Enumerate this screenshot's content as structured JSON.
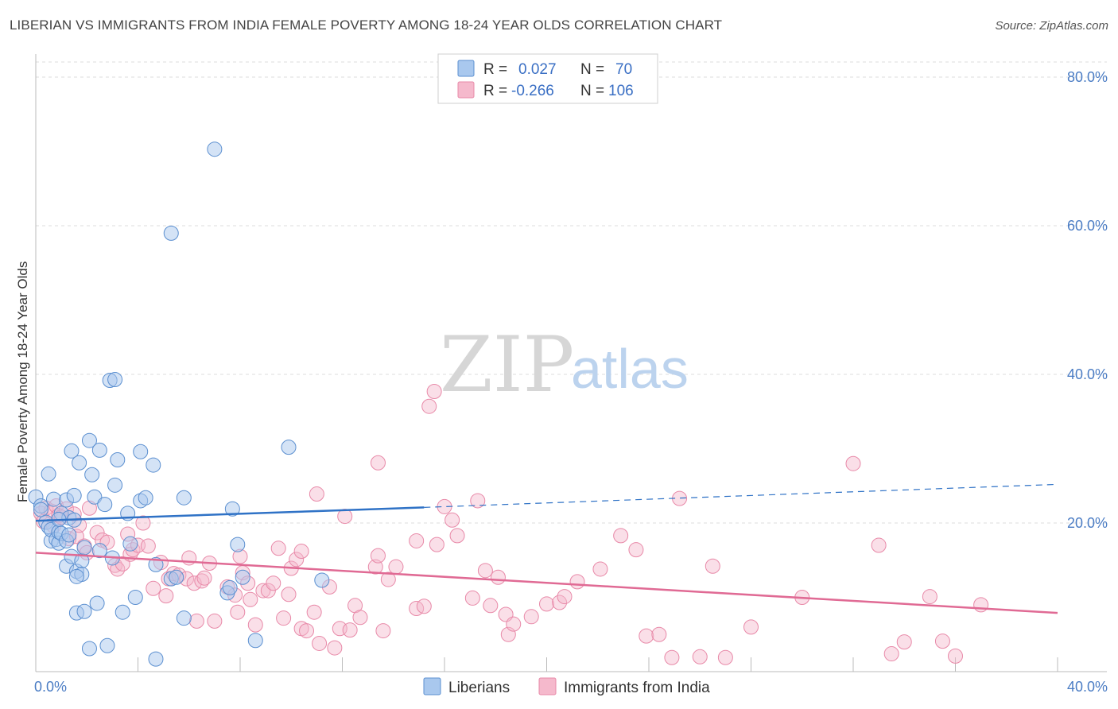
{
  "title": "LIBERIAN VS IMMIGRANTS FROM INDIA FEMALE POVERTY AMONG 18-24 YEAR OLDS CORRELATION CHART",
  "source": "Source: ZipAtlas.com",
  "watermark": {
    "zip": "ZIP",
    "atlas": "atlas"
  },
  "colors": {
    "blue_fill": "#a9c8ee",
    "blue_stroke": "#5b8fd0",
    "blue_line": "#2f72c6",
    "pink_fill": "#f5b9cc",
    "pink_stroke": "#e889a8",
    "pink_line": "#e06a94",
    "grid": "#dddddd",
    "tick_text": "#4a7cc4"
  },
  "legend": {
    "rows": [
      {
        "r_label": "R =",
        "r_value": "0.027",
        "n_label": "N =",
        "n_value": "70"
      },
      {
        "r_label": "R =",
        "r_value": "-0.266",
        "n_label": "N =",
        "n_value": "106"
      }
    ]
  },
  "chart_data": {
    "type": "scatter",
    "title": "LIBERIAN VS IMMIGRANTS FROM INDIA FEMALE POVERTY AMONG 18-24 YEAR OLDS CORRELATION CHART",
    "xlabel": "",
    "ylabel": "Female Poverty Among 18-24 Year Olds",
    "xlim": [
      0,
      40
    ],
    "ylim": [
      0,
      80
    ],
    "x_tick_labels": [
      "0.0%",
      "40.0%"
    ],
    "y_ticks": [
      20,
      40,
      60,
      80
    ],
    "y_tick_labels": [
      "20.0%",
      "40.0%",
      "60.0%",
      "80.0%"
    ],
    "grid": true,
    "series": [
      {
        "name": "Liberians",
        "color": "#a9c8ee",
        "r": 0.027,
        "n": 70,
        "trend": {
          "x0": 0,
          "y0": 20.3,
          "x1": 15.2,
          "y1": 22.1,
          "x_dash_end": 40,
          "y_dash_end": 25.2
        },
        "points": [
          [
            0.0,
            23.5
          ],
          [
            0.2,
            22.3
          ],
          [
            0.2,
            21.8
          ],
          [
            0.4,
            20.1
          ],
          [
            0.5,
            19.5
          ],
          [
            0.5,
            26.6
          ],
          [
            0.6,
            17.6
          ],
          [
            0.6,
            19.1
          ],
          [
            0.7,
            23.2
          ],
          [
            0.8,
            17.8
          ],
          [
            0.9,
            17.3
          ],
          [
            0.9,
            18.8
          ],
          [
            1.0,
            21.3
          ],
          [
            1.0,
            18.6
          ],
          [
            1.2,
            23.1
          ],
          [
            1.2,
            17.6
          ],
          [
            1.2,
            14.2
          ],
          [
            1.3,
            18.4
          ],
          [
            1.3,
            20.7
          ],
          [
            1.4,
            15.5
          ],
          [
            1.4,
            29.7
          ],
          [
            1.5,
            20.4
          ],
          [
            1.5,
            23.7
          ],
          [
            1.6,
            13.5
          ],
          [
            1.6,
            7.9
          ],
          [
            1.7,
            28.1
          ],
          [
            1.8,
            14.9
          ],
          [
            1.8,
            13.1
          ],
          [
            1.9,
            16.7
          ],
          [
            1.9,
            8.1
          ],
          [
            2.1,
            31.1
          ],
          [
            2.1,
            3.1
          ],
          [
            2.2,
            26.5
          ],
          [
            2.3,
            23.5
          ],
          [
            2.4,
            9.2
          ],
          [
            2.5,
            16.3
          ],
          [
            2.5,
            29.8
          ],
          [
            2.7,
            22.5
          ],
          [
            2.8,
            3.5
          ],
          [
            2.9,
            39.2
          ],
          [
            3.0,
            15.3
          ],
          [
            3.1,
            39.3
          ],
          [
            3.1,
            25.1
          ],
          [
            3.2,
            28.5
          ],
          [
            3.4,
            8.0
          ],
          [
            3.6,
            21.3
          ],
          [
            3.7,
            17.2
          ],
          [
            3.9,
            10.0
          ],
          [
            4.1,
            29.6
          ],
          [
            4.1,
            23.0
          ],
          [
            4.3,
            23.4
          ],
          [
            4.6,
            27.8
          ],
          [
            4.7,
            14.4
          ],
          [
            4.7,
            1.7
          ],
          [
            5.3,
            12.5
          ],
          [
            5.3,
            59.0
          ],
          [
            5.5,
            12.7
          ],
          [
            5.8,
            23.4
          ],
          [
            5.8,
            7.2
          ],
          [
            7.0,
            70.3
          ],
          [
            7.5,
            10.6
          ],
          [
            7.6,
            11.3
          ],
          [
            7.7,
            21.9
          ],
          [
            7.9,
            17.1
          ],
          [
            8.1,
            12.7
          ],
          [
            8.6,
            4.2
          ],
          [
            9.9,
            30.2
          ],
          [
            11.2,
            12.3
          ],
          [
            1.6,
            12.8
          ],
          [
            0.9,
            20.5
          ]
        ]
      },
      {
        "name": "Immigrants from India",
        "color": "#f5b9cc",
        "r": -0.266,
        "n": 106,
        "trend": {
          "x0": 0,
          "y0": 16.0,
          "x1": 40,
          "y1": 7.9
        },
        "points": [
          [
            0.2,
            21.3
          ],
          [
            0.3,
            20.2
          ],
          [
            0.4,
            22.0
          ],
          [
            0.6,
            21.6
          ],
          [
            0.7,
            19.6
          ],
          [
            0.8,
            22.3
          ],
          [
            0.9,
            21.0
          ],
          [
            1.0,
            20.8
          ],
          [
            1.2,
            21.9
          ],
          [
            1.3,
            17.9
          ],
          [
            1.5,
            21.2
          ],
          [
            1.6,
            18.2
          ],
          [
            1.7,
            19.7
          ],
          [
            1.9,
            16.9
          ],
          [
            2.0,
            16.0
          ],
          [
            2.1,
            22.0
          ],
          [
            2.4,
            18.7
          ],
          [
            2.6,
            17.7
          ],
          [
            2.8,
            17.4
          ],
          [
            3.1,
            14.3
          ],
          [
            3.2,
            13.8
          ],
          [
            3.4,
            14.5
          ],
          [
            3.6,
            18.5
          ],
          [
            3.7,
            15.8
          ],
          [
            3.8,
            16.4
          ],
          [
            4.0,
            17.0
          ],
          [
            4.2,
            20.0
          ],
          [
            4.4,
            16.9
          ],
          [
            4.6,
            11.2
          ],
          [
            4.9,
            14.7
          ],
          [
            5.1,
            10.2
          ],
          [
            5.2,
            12.5
          ],
          [
            5.4,
            13.2
          ],
          [
            5.6,
            13.0
          ],
          [
            5.9,
            12.5
          ],
          [
            6.0,
            15.3
          ],
          [
            6.2,
            11.9
          ],
          [
            6.3,
            6.8
          ],
          [
            6.5,
            12.2
          ],
          [
            6.6,
            12.6
          ],
          [
            6.8,
            14.6
          ],
          [
            7.0,
            6.8
          ],
          [
            7.5,
            11.4
          ],
          [
            7.8,
            10.3
          ],
          [
            7.9,
            8.0
          ],
          [
            8.0,
            15.5
          ],
          [
            8.1,
            13.3
          ],
          [
            8.3,
            11.9
          ],
          [
            8.4,
            9.7
          ],
          [
            8.6,
            6.3
          ],
          [
            8.9,
            10.9
          ],
          [
            9.1,
            10.9
          ],
          [
            9.3,
            11.9
          ],
          [
            9.5,
            16.6
          ],
          [
            9.7,
            7.2
          ],
          [
            9.9,
            10.4
          ],
          [
            10.0,
            13.9
          ],
          [
            10.2,
            15.1
          ],
          [
            10.4,
            16.2
          ],
          [
            10.4,
            5.8
          ],
          [
            10.6,
            5.5
          ],
          [
            10.9,
            8.0
          ],
          [
            11.0,
            23.9
          ],
          [
            11.1,
            3.8
          ],
          [
            11.5,
            11.4
          ],
          [
            11.7,
            3.2
          ],
          [
            11.9,
            5.8
          ],
          [
            12.1,
            20.9
          ],
          [
            12.3,
            5.6
          ],
          [
            12.5,
            8.9
          ],
          [
            12.7,
            7.3
          ],
          [
            13.3,
            14.1
          ],
          [
            13.4,
            15.6
          ],
          [
            13.6,
            5.5
          ],
          [
            13.4,
            28.1
          ],
          [
            13.8,
            12.4
          ],
          [
            14.1,
            14.1
          ],
          [
            14.9,
            8.5
          ],
          [
            14.9,
            17.6
          ],
          [
            15.2,
            8.8
          ],
          [
            15.4,
            35.7
          ],
          [
            15.6,
            37.7
          ],
          [
            15.7,
            17.1
          ],
          [
            16.0,
            22.2
          ],
          [
            16.3,
            20.4
          ],
          [
            16.5,
            18.3
          ],
          [
            17.1,
            9.9
          ],
          [
            17.3,
            23.0
          ],
          [
            17.6,
            13.6
          ],
          [
            17.8,
            8.9
          ],
          [
            18.1,
            12.7
          ],
          [
            18.4,
            7.7
          ],
          [
            18.5,
            5.0
          ],
          [
            18.7,
            6.4
          ],
          [
            19.4,
            7.4
          ],
          [
            20.0,
            9.1
          ],
          [
            20.5,
            9.3
          ],
          [
            20.7,
            10.1
          ],
          [
            21.2,
            12.1
          ],
          [
            22.1,
            13.8
          ],
          [
            22.9,
            18.3
          ],
          [
            23.5,
            16.4
          ],
          [
            23.9,
            4.8
          ],
          [
            24.4,
            5.0
          ],
          [
            24.9,
            1.9
          ],
          [
            25.2,
            23.3
          ]
        ]
      }
    ],
    "extra_points_india": [
      [
        26.0,
        2.0
      ],
      [
        26.5,
        14.2
      ],
      [
        28.0,
        6.0
      ],
      [
        30.0,
        10.0
      ],
      [
        32.0,
        28.0
      ],
      [
        33.0,
        17.0
      ],
      [
        33.5,
        2.4
      ],
      [
        34.0,
        4.0
      ],
      [
        35.0,
        10.1
      ],
      [
        36.0,
        2.1
      ],
      [
        37.0,
        9.0
      ],
      [
        27.0,
        1.9
      ],
      [
        35.5,
        4.1
      ]
    ]
  },
  "bottom_legend": {
    "items": [
      {
        "label": "Liberians"
      },
      {
        "label": "Immigrants from India"
      }
    ]
  }
}
